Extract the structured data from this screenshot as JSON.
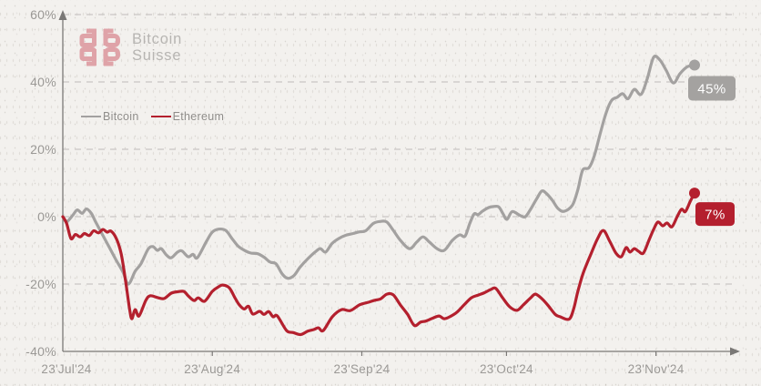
{
  "brand": {
    "line1": "Bitcoin",
    "line2": "Suisse"
  },
  "legend": {
    "items": [
      {
        "label": "Bitcoin",
        "color": "#a3a1a0"
      },
      {
        "label": "Ethereum",
        "color": "#b4202e"
      }
    ]
  },
  "colors": {
    "background": "#f3f1ee",
    "axis": "#7a7876",
    "grid": "#c9c7c4",
    "tick_text": "#9b9996",
    "bitcoin_line": "#a3a1a0",
    "ethereum_line": "#b4202e",
    "bitcoin_badge": "#a4a2a0",
    "ethereum_badge": "#b41f2e",
    "badge_text": "#ffffff",
    "logo_mark": "#dfa3a8",
    "logo_text": "#b7b5b2"
  },
  "chart_data": {
    "type": "line",
    "title": "",
    "x_axis": {
      "tick_labels": [
        "23'Jul'24",
        "23'Aug'24",
        "23'Sep'24",
        "23'Oct'24",
        "23'Nov'24"
      ],
      "tick_days": [
        0,
        31,
        62,
        92,
        123
      ],
      "range_days": [
        0,
        131
      ]
    },
    "y_axis": {
      "tick_labels": [
        "60%",
        "40%",
        "20%",
        "0%",
        "-20%",
        "-40%"
      ],
      "tick_values": [
        60,
        40,
        20,
        0,
        -20,
        -40
      ],
      "unit": "%",
      "range": [
        -40,
        60
      ]
    },
    "grid": "horizontal-dashed",
    "legend_position": "top-left",
    "series": [
      {
        "name": "Bitcoin",
        "color": "#a3a1a0",
        "end_value": 45,
        "end_label": "45%",
        "points_day_pct": [
          [
            0,
            0
          ],
          [
            0.8,
            -1.5
          ],
          [
            2.1,
            0.5
          ],
          [
            3,
            2
          ],
          [
            4,
            1
          ],
          [
            4.9,
            2.3
          ],
          [
            5.9,
            1
          ],
          [
            6.8,
            -1.5
          ],
          [
            8.1,
            -5
          ],
          [
            9.6,
            -9
          ],
          [
            11.1,
            -13
          ],
          [
            12.5,
            -16.5
          ],
          [
            13.6,
            -20
          ],
          [
            15,
            -16.2
          ],
          [
            16.2,
            -14
          ],
          [
            17.7,
            -9.6
          ],
          [
            18.7,
            -8.9
          ],
          [
            19.6,
            -10
          ],
          [
            20.4,
            -9.5
          ],
          [
            21.5,
            -11.4
          ],
          [
            22.5,
            -12.2
          ],
          [
            23.8,
            -10.5
          ],
          [
            24.7,
            -10.2
          ],
          [
            26,
            -11.9
          ],
          [
            27,
            -11.2
          ],
          [
            27.9,
            -12.2
          ],
          [
            29.8,
            -7.3
          ],
          [
            31,
            -4.6
          ],
          [
            32.3,
            -3.7
          ],
          [
            33.8,
            -4.1
          ],
          [
            35.1,
            -6.5
          ],
          [
            36.4,
            -8.8
          ],
          [
            37.9,
            -10.2
          ],
          [
            39,
            -10.8
          ],
          [
            40.4,
            -11
          ],
          [
            41.7,
            -12
          ],
          [
            43,
            -13.5
          ],
          [
            44.2,
            -14
          ],
          [
            45.5,
            -17
          ],
          [
            46.6,
            -18.3
          ],
          [
            47.9,
            -17.5
          ],
          [
            49.2,
            -15
          ],
          [
            50.8,
            -12.5
          ],
          [
            52.3,
            -10.5
          ],
          [
            53.4,
            -9.5
          ],
          [
            54.5,
            -10.5
          ],
          [
            55.8,
            -8
          ],
          [
            57.2,
            -6.5
          ],
          [
            58.7,
            -5.5
          ],
          [
            60.2,
            -5
          ],
          [
            61.5,
            -4.5
          ],
          [
            62.8,
            -4.2
          ],
          [
            64.4,
            -2
          ],
          [
            65.9,
            -1.4
          ],
          [
            67.2,
            -1.6
          ],
          [
            68.5,
            -4
          ],
          [
            70,
            -7
          ],
          [
            71.9,
            -9.5
          ],
          [
            73.4,
            -7.5
          ],
          [
            74.7,
            -6
          ],
          [
            76,
            -7.5
          ],
          [
            77.6,
            -9.5
          ],
          [
            79.1,
            -10
          ],
          [
            80.8,
            -7
          ],
          [
            82.3,
            -5.4
          ],
          [
            83.4,
            -5.8
          ],
          [
            84.4,
            -2
          ],
          [
            85.3,
            0.8
          ],
          [
            86.1,
            0.6
          ],
          [
            87,
            1.6
          ],
          [
            88.3,
            2.7
          ],
          [
            89.3,
            3
          ],
          [
            90.4,
            2.9
          ],
          [
            91.3,
            0.8
          ],
          [
            92.1,
            -0.8
          ],
          [
            93.2,
            1.5
          ],
          [
            94.9,
            0.3
          ],
          [
            95.9,
            0
          ],
          [
            97,
            2.2
          ],
          [
            98.3,
            5.4
          ],
          [
            99.3,
            7.6
          ],
          [
            100.2,
            7
          ],
          [
            101.5,
            4.9
          ],
          [
            102.7,
            2.4
          ],
          [
            104,
            1.6
          ],
          [
            105.7,
            3.5
          ],
          [
            106.8,
            8
          ],
          [
            107.8,
            13.8
          ],
          [
            109.1,
            14.5
          ],
          [
            110.2,
            18
          ],
          [
            111.5,
            25
          ],
          [
            112.7,
            31
          ],
          [
            113.8,
            34.5
          ],
          [
            115,
            35.5
          ],
          [
            116.1,
            36.5
          ],
          [
            117.2,
            35
          ],
          [
            118.5,
            37.8
          ],
          [
            119.9,
            36.3
          ],
          [
            121.2,
            41
          ],
          [
            122.5,
            47.3
          ],
          [
            123.8,
            46.5
          ],
          [
            125.1,
            43.5
          ],
          [
            126.6,
            39.7
          ],
          [
            128,
            42.5
          ],
          [
            129.5,
            44.5
          ],
          [
            131,
            45
          ]
        ]
      },
      {
        "name": "Ethereum",
        "color": "#b4202e",
        "end_value": 7,
        "end_label": "7%",
        "points_day_pct": [
          [
            0,
            0
          ],
          [
            0.8,
            -2
          ],
          [
            1.7,
            -6.5
          ],
          [
            2.6,
            -5.3
          ],
          [
            3.6,
            -6
          ],
          [
            4.5,
            -5
          ],
          [
            5.5,
            -5.6
          ],
          [
            6.4,
            -4.2
          ],
          [
            7.4,
            -4.8
          ],
          [
            8.3,
            -3.8
          ],
          [
            9.2,
            -4.6
          ],
          [
            10,
            -4.3
          ],
          [
            11.1,
            -6.5
          ],
          [
            12.1,
            -11
          ],
          [
            13,
            -19
          ],
          [
            13.8,
            -27
          ],
          [
            14.3,
            -30.3
          ],
          [
            15,
            -27.6
          ],
          [
            15.8,
            -29.5
          ],
          [
            17.2,
            -24.9
          ],
          [
            18.1,
            -23.5
          ],
          [
            19.6,
            -24
          ],
          [
            21,
            -24.3
          ],
          [
            22.5,
            -22.7
          ],
          [
            23.8,
            -22.3
          ],
          [
            25.1,
            -22.2
          ],
          [
            26,
            -23.5
          ],
          [
            27.2,
            -24.9
          ],
          [
            28.1,
            -24.1
          ],
          [
            29.4,
            -25.1
          ],
          [
            31,
            -22.2
          ],
          [
            32.3,
            -20.8
          ],
          [
            33.2,
            -20.3
          ],
          [
            34.5,
            -21.1
          ],
          [
            35.7,
            -24.1
          ],
          [
            36.6,
            -26.2
          ],
          [
            37.6,
            -27.4
          ],
          [
            38.5,
            -26.6
          ],
          [
            39.4,
            -28.9
          ],
          [
            40.8,
            -28.1
          ],
          [
            41.7,
            -29
          ],
          [
            42.7,
            -28.2
          ],
          [
            43.6,
            -29.7
          ],
          [
            44.5,
            -29.5
          ],
          [
            46.4,
            -33.8
          ],
          [
            47.8,
            -34.4
          ],
          [
            49.3,
            -35
          ],
          [
            50.8,
            -34
          ],
          [
            52.1,
            -33.5
          ],
          [
            53,
            -33
          ],
          [
            54,
            -33.8
          ],
          [
            55.9,
            -29.7
          ],
          [
            57.8,
            -27.6
          ],
          [
            59.6,
            -27.9
          ],
          [
            61.5,
            -26.2
          ],
          [
            63.4,
            -25.4
          ],
          [
            64.7,
            -24.8
          ],
          [
            65.9,
            -24.4
          ],
          [
            67.2,
            -23
          ],
          [
            68.5,
            -23.2
          ],
          [
            70,
            -26.2
          ],
          [
            71.5,
            -29
          ],
          [
            72.9,
            -32.3
          ],
          [
            74.2,
            -31.3
          ],
          [
            75.3,
            -31
          ],
          [
            76.6,
            -30.2
          ],
          [
            78,
            -29.5
          ],
          [
            79.1,
            -30.3
          ],
          [
            80.4,
            -29.6
          ],
          [
            81.7,
            -28.4
          ],
          [
            83.2,
            -26.2
          ],
          [
            84.7,
            -24.1
          ],
          [
            86.1,
            -23.3
          ],
          [
            87.4,
            -22.6
          ],
          [
            88.9,
            -21.5
          ],
          [
            89.8,
            -21.3
          ],
          [
            91.2,
            -24.1
          ],
          [
            92.7,
            -26.8
          ],
          [
            94.2,
            -27.8
          ],
          [
            95.5,
            -26.2
          ],
          [
            97,
            -24.1
          ],
          [
            98,
            -23
          ],
          [
            99.3,
            -24.3
          ],
          [
            100.6,
            -26.3
          ],
          [
            102.1,
            -29
          ],
          [
            103.1,
            -29.7
          ],
          [
            105,
            -30.4
          ],
          [
            106,
            -27
          ],
          [
            106.8,
            -22.2
          ],
          [
            107.9,
            -16.8
          ],
          [
            109.6,
            -10.8
          ],
          [
            110.9,
            -6.5
          ],
          [
            112.1,
            -4.1
          ],
          [
            113.4,
            -7.3
          ],
          [
            114.7,
            -10.8
          ],
          [
            115.8,
            -11.9
          ],
          [
            116.8,
            -9.2
          ],
          [
            117.6,
            -10.5
          ],
          [
            118.5,
            -9.5
          ],
          [
            119.4,
            -10.3
          ],
          [
            120.4,
            -10.8
          ],
          [
            121.6,
            -6.8
          ],
          [
            122.5,
            -3.8
          ],
          [
            123.4,
            -1.6
          ],
          [
            124.4,
            -2.7
          ],
          [
            125.3,
            -1.9
          ],
          [
            126.3,
            -3
          ],
          [
            127.4,
            0
          ],
          [
            128.3,
            2.2
          ],
          [
            129.1,
            1.5
          ],
          [
            130.1,
            4.5
          ],
          [
            131,
            7
          ]
        ]
      }
    ]
  }
}
